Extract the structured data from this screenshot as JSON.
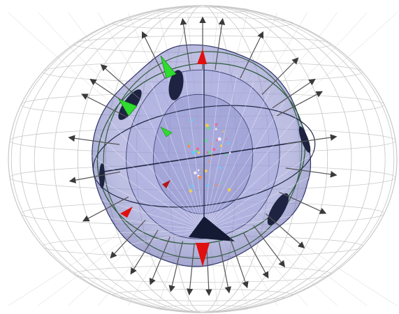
{
  "scene": {
    "background_color": "#ffffff",
    "wire_color": "#c8c8c8",
    "blob_fill": "#8e8fd0",
    "blob_edge": "#2f3566",
    "arrow_color": "#555555",
    "arrow_head_color": "#3a3a3a",
    "green_marker": "#2fdc2f",
    "red_marker": "#e01010",
    "dark_plate": "#1d2340",
    "ring_color": "#2c5a3a",
    "meridian_count": 18,
    "parallel_count": 13,
    "arrow_count": 28,
    "particle_count": 40
  }
}
